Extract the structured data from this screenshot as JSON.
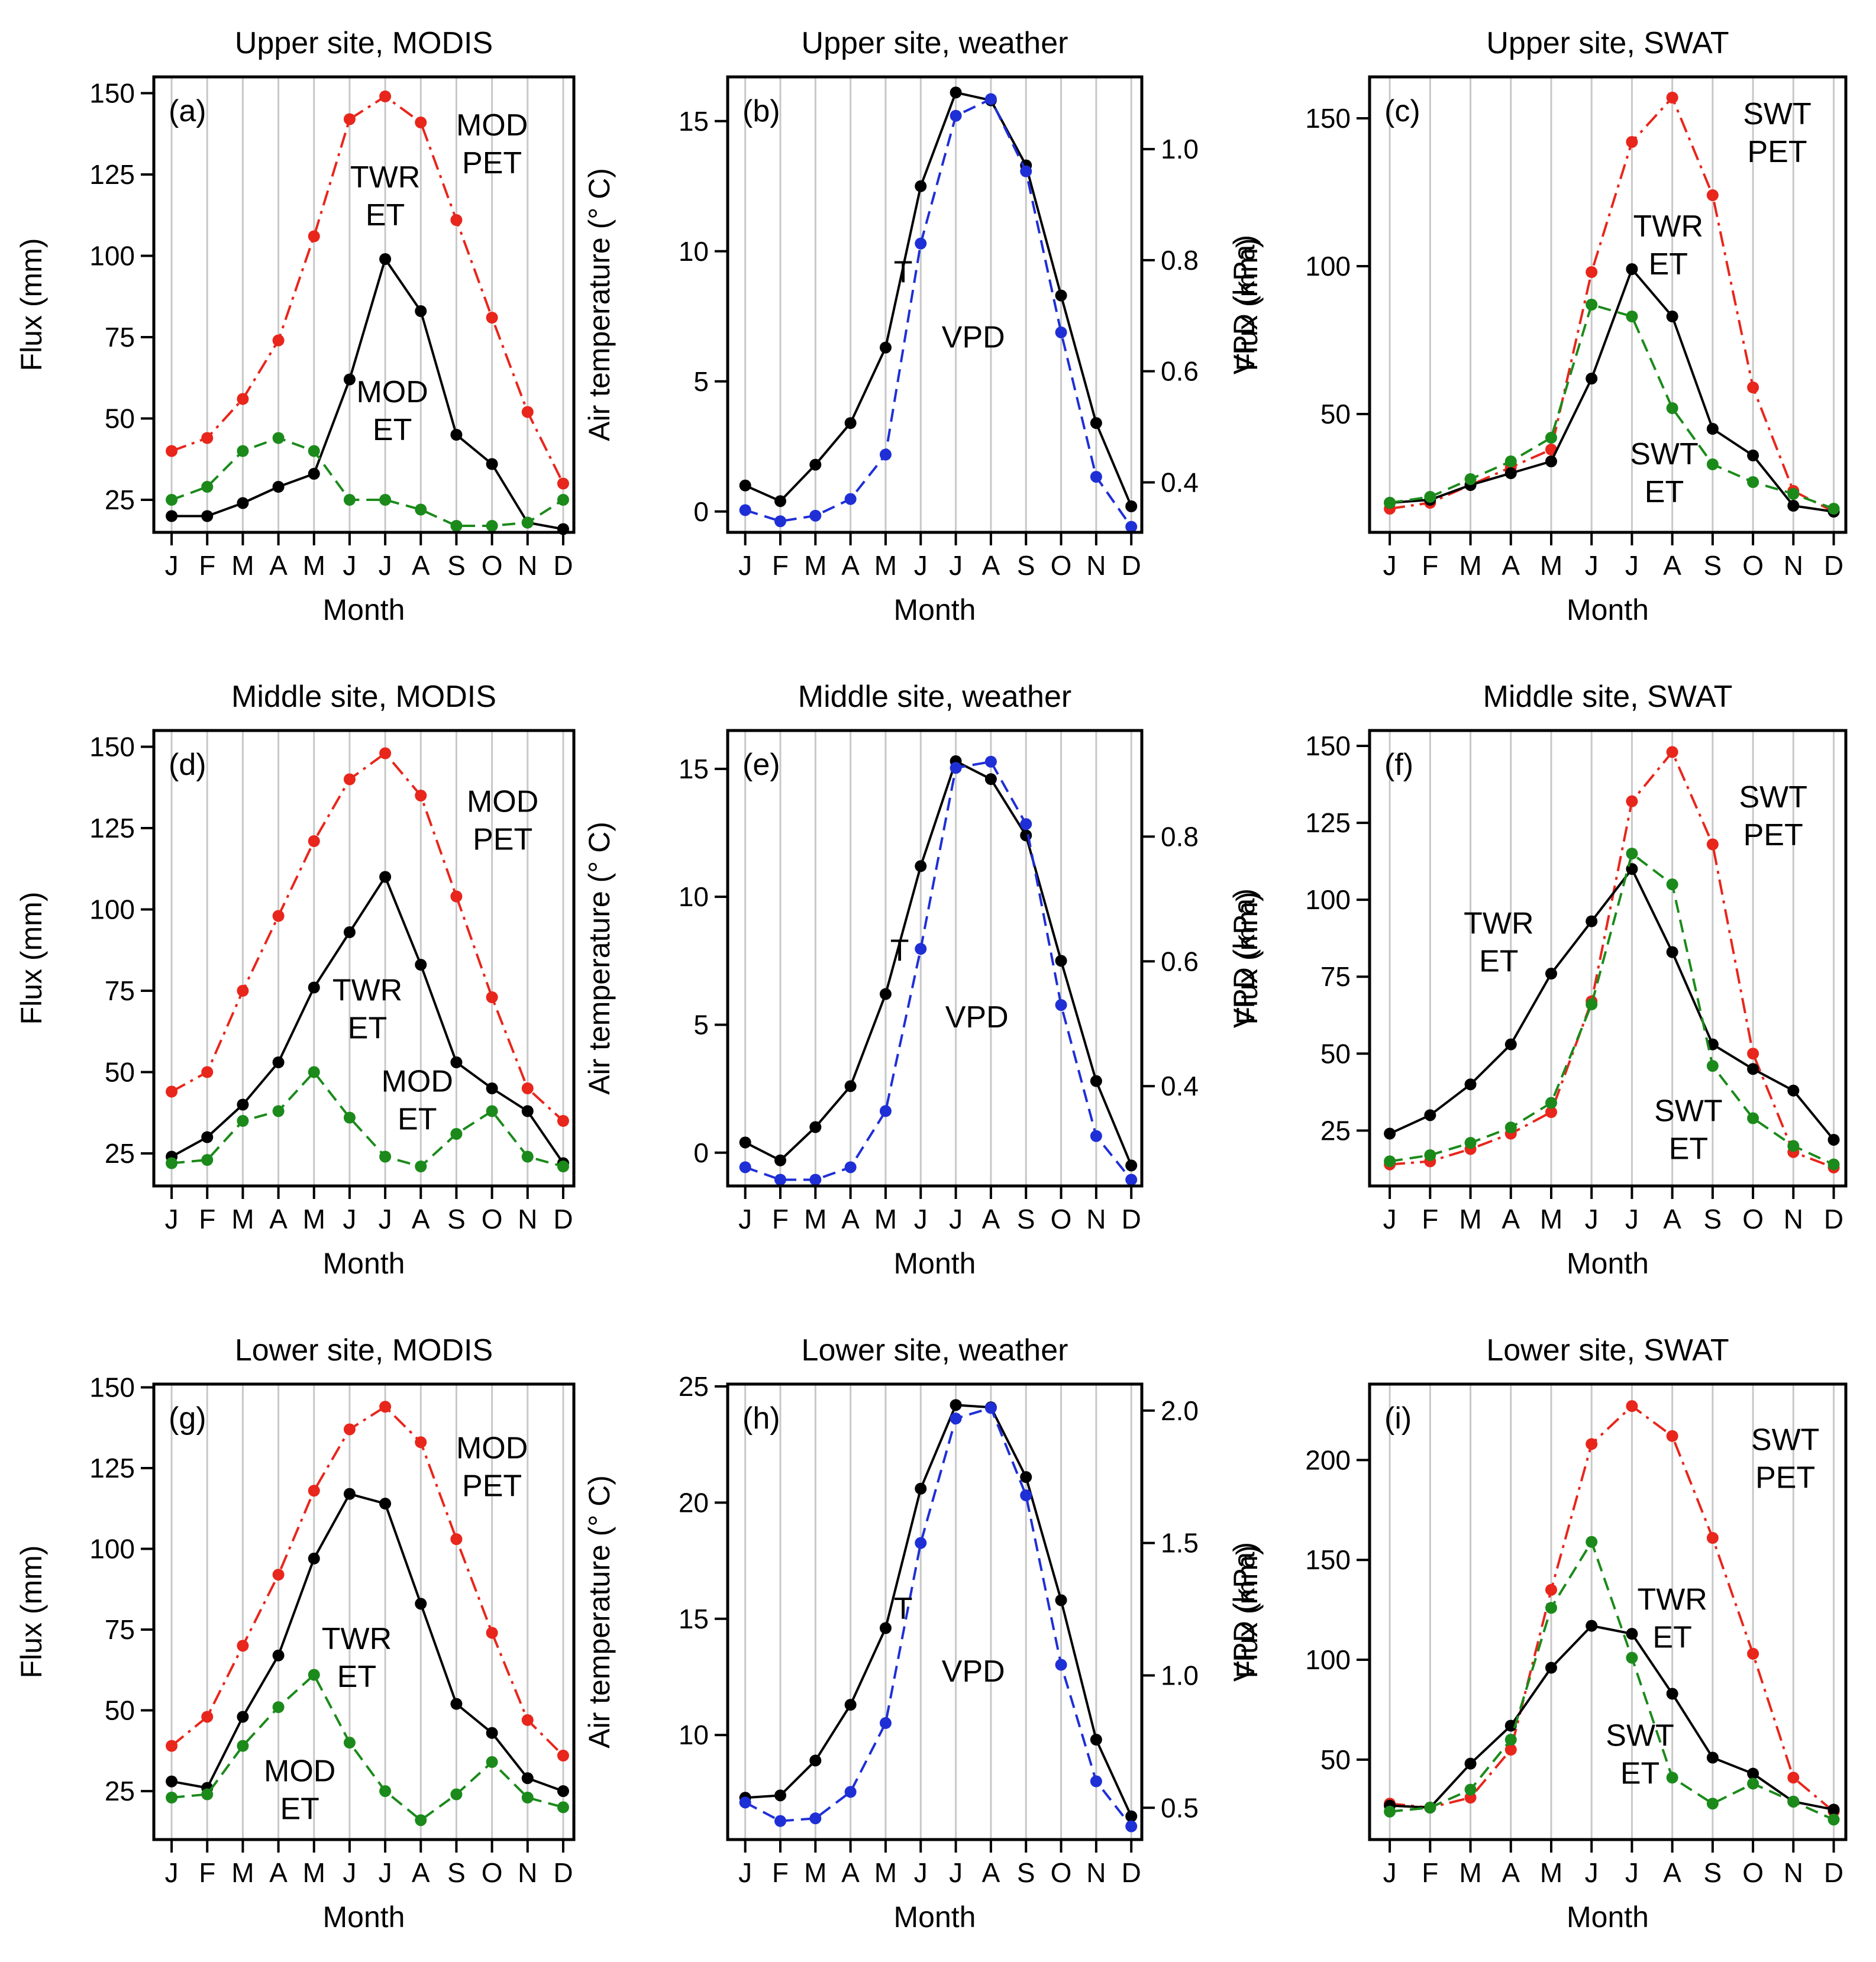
{
  "colors": {
    "black": "#000000",
    "red": "#e8261c",
    "green": "#1b8a1b",
    "blue": "#1f2fd6",
    "grid": "#c8c8c8"
  },
  "chart_data": [
    {
      "id": "a",
      "type": "line",
      "title": "Upper site, MODIS",
      "panel_label": "(a)",
      "xlabel": "Month",
      "ylabel": "Flux (mm)",
      "categories": [
        "J",
        "F",
        "M",
        "A",
        "M",
        "J",
        "J",
        "A",
        "S",
        "O",
        "N",
        "D"
      ],
      "ylim": [
        15,
        155
      ],
      "yticks": [
        25,
        50,
        75,
        100,
        125,
        150
      ],
      "series": [
        {
          "name": "MOD PET",
          "color": "red",
          "style": "dashdot",
          "values": [
            40,
            44,
            56,
            74,
            106,
            142,
            149,
            141,
            111,
            81,
            52,
            30
          ]
        },
        {
          "name": "TWR ET",
          "color": "black",
          "style": "solid",
          "values": [
            20,
            20,
            24,
            29,
            33,
            62,
            99,
            83,
            45,
            36,
            18,
            16
          ]
        },
        {
          "name": "MOD ET",
          "color": "green",
          "style": "dashed",
          "values": [
            25,
            29,
            40,
            44,
            40,
            25,
            25,
            22,
            17,
            17,
            18,
            25
          ]
        }
      ],
      "annotations": [
        {
          "lines": [
            "MOD",
            "PET"
          ],
          "x": 9.0,
          "y": 137
        },
        {
          "lines": [
            "TWR",
            "ET"
          ],
          "x": 6.0,
          "y": 121
        },
        {
          "lines": [
            "MOD",
            "ET"
          ],
          "x": 6.2,
          "y": 55
        }
      ]
    },
    {
      "id": "b",
      "type": "line",
      "title": "Upper site, weather",
      "panel_label": "(b)",
      "xlabel": "Month",
      "ylabel": "Air temperature (° C)",
      "ylabel_right": "VPD (kPa)",
      "categories": [
        "J",
        "F",
        "M",
        "A",
        "M",
        "J",
        "J",
        "A",
        "S",
        "O",
        "N",
        "D"
      ],
      "ylim": [
        -0.8,
        16.7
      ],
      "yticks": [
        0,
        5,
        10,
        15
      ],
      "ylim_right": [
        0.31,
        1.13
      ],
      "yticks_right": [
        0.4,
        0.6,
        0.8,
        1.0
      ],
      "series": [
        {
          "name": "T",
          "axis": "left",
          "color": "black",
          "style": "solid",
          "values": [
            1.0,
            0.4,
            1.8,
            3.4,
            6.3,
            12.5,
            16.1,
            15.8,
            13.3,
            8.3,
            3.4,
            0.2
          ]
        },
        {
          "name": "VPD",
          "axis": "right",
          "color": "blue",
          "style": "dashed",
          "values": [
            0.35,
            0.33,
            0.34,
            0.37,
            0.45,
            0.83,
            1.06,
            1.09,
            0.96,
            0.67,
            0.41,
            0.32
          ]
        }
      ],
      "annotations": [
        {
          "lines": [
            "T"
          ],
          "x": 4.5,
          "y": 8.8
        },
        {
          "lines": [
            "VPD"
          ],
          "x": 6.5,
          "y": 6.3
        }
      ]
    },
    {
      "id": "c",
      "type": "line",
      "title": "Upper site, SWAT",
      "panel_label": "(c)",
      "xlabel": "Month",
      "ylabel": "Flux (mm)",
      "categories": [
        "J",
        "F",
        "M",
        "A",
        "M",
        "J",
        "J",
        "A",
        "S",
        "O",
        "N",
        "D"
      ],
      "ylim": [
        10,
        164
      ],
      "yticks": [
        50,
        100,
        150
      ],
      "series": [
        {
          "name": "SWT PET",
          "color": "red",
          "style": "dashdot",
          "values": [
            18,
            20,
            26,
            32,
            38,
            98,
            142,
            157,
            124,
            59,
            24,
            17
          ]
        },
        {
          "name": "TWR ET",
          "color": "black",
          "style": "solid",
          "values": [
            20,
            21,
            26,
            30,
            34,
            62,
            99,
            83,
            45,
            36,
            19,
            17
          ]
        },
        {
          "name": "SWT ET",
          "color": "green",
          "style": "dashed",
          "values": [
            20,
            22,
            28,
            34,
            42,
            87,
            83,
            52,
            33,
            27,
            23,
            18
          ]
        }
      ],
      "annotations": [
        {
          "lines": [
            "SWT",
            "PET"
          ],
          "x": 9.6,
          "y": 148
        },
        {
          "lines": [
            "TWR",
            "ET"
          ],
          "x": 6.9,
          "y": 110
        },
        {
          "lines": [
            "SWT",
            "ET"
          ],
          "x": 6.8,
          "y": 33
        }
      ]
    },
    {
      "id": "d",
      "type": "line",
      "title": "Middle site, MODIS",
      "panel_label": "(d)",
      "xlabel": "Month",
      "ylabel": "Flux (mm)",
      "categories": [
        "J",
        "F",
        "M",
        "A",
        "M",
        "J",
        "J",
        "A",
        "S",
        "O",
        "N",
        "D"
      ],
      "ylim": [
        15,
        155
      ],
      "yticks": [
        25,
        50,
        75,
        100,
        125,
        150
      ],
      "series": [
        {
          "name": "MOD PET",
          "color": "red",
          "style": "dashdot",
          "values": [
            44,
            50,
            75,
            98,
            121,
            140,
            148,
            135,
            104,
            73,
            45,
            35
          ]
        },
        {
          "name": "TWR ET",
          "color": "black",
          "style": "solid",
          "values": [
            24,
            30,
            40,
            53,
            76,
            93,
            110,
            83,
            53,
            45,
            38,
            22
          ]
        },
        {
          "name": "MOD ET",
          "color": "green",
          "style": "dashed",
          "values": [
            22,
            23,
            35,
            38,
            50,
            36,
            24,
            21,
            31,
            38,
            24,
            21
          ]
        }
      ],
      "annotations": [
        {
          "lines": [
            "MOD",
            "PET"
          ],
          "x": 9.3,
          "y": 130
        },
        {
          "lines": [
            "TWR",
            "ET"
          ],
          "x": 5.5,
          "y": 72
        },
        {
          "lines": [
            "MOD",
            "ET"
          ],
          "x": 6.9,
          "y": 44
        }
      ]
    },
    {
      "id": "e",
      "type": "line",
      "title": "Middle site, weather",
      "panel_label": "(e)",
      "xlabel": "Month",
      "ylabel": "Air temperature (° C)",
      "ylabel_right": "VPD (kPa)",
      "categories": [
        "J",
        "F",
        "M",
        "A",
        "M",
        "J",
        "J",
        "A",
        "S",
        "O",
        "N",
        "D"
      ],
      "ylim": [
        -1.3,
        16.5
      ],
      "yticks": [
        0,
        5,
        10,
        15
      ],
      "ylim_right": [
        0.24,
        0.97
      ],
      "yticks_right": [
        0.4,
        0.6,
        0.8
      ],
      "series": [
        {
          "name": "T",
          "axis": "left",
          "color": "black",
          "style": "solid",
          "values": [
            0.4,
            -0.3,
            1.0,
            2.6,
            6.2,
            11.2,
            15.3,
            14.6,
            12.4,
            7.5,
            2.8,
            -0.5
          ]
        },
        {
          "name": "VPD",
          "axis": "right",
          "color": "blue",
          "style": "dashed",
          "values": [
            0.27,
            0.25,
            0.25,
            0.27,
            0.36,
            0.62,
            0.91,
            0.92,
            0.82,
            0.53,
            0.32,
            0.25
          ]
        }
      ],
      "annotations": [
        {
          "lines": [
            "T"
          ],
          "x": 4.4,
          "y": 7.5
        },
        {
          "lines": [
            "VPD"
          ],
          "x": 6.6,
          "y": 4.9
        }
      ]
    },
    {
      "id": "f",
      "type": "line",
      "title": "Middle site, SWAT",
      "panel_label": "(f)",
      "xlabel": "Month",
      "ylabel": "Flux (mm)",
      "categories": [
        "J",
        "F",
        "M",
        "A",
        "M",
        "J",
        "J",
        "A",
        "S",
        "O",
        "N",
        "D"
      ],
      "ylim": [
        7,
        155
      ],
      "yticks": [
        25,
        50,
        75,
        100,
        125,
        150
      ],
      "series": [
        {
          "name": "SWT PET",
          "color": "red",
          "style": "dashdot",
          "values": [
            14,
            15,
            19,
            24,
            31,
            67,
            132,
            148,
            118,
            50,
            18,
            13
          ]
        },
        {
          "name": "TWR ET",
          "color": "black",
          "style": "solid",
          "values": [
            24,
            30,
            40,
            53,
            76,
            93,
            110,
            83,
            53,
            45,
            38,
            22
          ]
        },
        {
          "name": "SWT ET",
          "color": "green",
          "style": "dashed",
          "values": [
            15,
            17,
            21,
            26,
            34,
            66,
            115,
            105,
            46,
            29,
            20,
            14
          ]
        }
      ],
      "annotations": [
        {
          "lines": [
            "SWT",
            "PET"
          ],
          "x": 9.5,
          "y": 130
        },
        {
          "lines": [
            "TWR",
            "ET"
          ],
          "x": 2.7,
          "y": 89
        },
        {
          "lines": [
            "SWT",
            "ET"
          ],
          "x": 7.4,
          "y": 28
        }
      ]
    },
    {
      "id": "g",
      "type": "line",
      "title": "Lower site, MODIS",
      "panel_label": "(g)",
      "xlabel": "Month",
      "ylabel": "Flux (mm)",
      "categories": [
        "J",
        "F",
        "M",
        "A",
        "M",
        "J",
        "J",
        "A",
        "S",
        "O",
        "N",
        "D"
      ],
      "ylim": [
        10,
        151
      ],
      "yticks": [
        25,
        50,
        75,
        100,
        125,
        150
      ],
      "series": [
        {
          "name": "MOD PET",
          "color": "red",
          "style": "dashdot",
          "values": [
            39,
            48,
            70,
            92,
            118,
            137,
            144,
            133,
            103,
            74,
            47,
            36
          ]
        },
        {
          "name": "TWR ET",
          "color": "black",
          "style": "solid",
          "values": [
            28,
            26,
            48,
            67,
            97,
            117,
            114,
            83,
            52,
            43,
            29,
            25
          ]
        },
        {
          "name": "MOD ET",
          "color": "green",
          "style": "dashed",
          "values": [
            23,
            24,
            39,
            51,
            61,
            40,
            25,
            16,
            24,
            34,
            23,
            20
          ]
        }
      ],
      "annotations": [
        {
          "lines": [
            "MOD",
            "PET"
          ],
          "x": 9.0,
          "y": 128
        },
        {
          "lines": [
            "TWR",
            "ET"
          ],
          "x": 5.2,
          "y": 69
        },
        {
          "lines": [
            "MOD",
            "ET"
          ],
          "x": 3.6,
          "y": 28
        }
      ]
    },
    {
      "id": "h",
      "type": "line",
      "title": "Lower site, weather",
      "panel_label": "(h)",
      "xlabel": "Month",
      "ylabel": "Air temperature (° C)",
      "ylabel_right": "VPD (kPa)",
      "categories": [
        "J",
        "F",
        "M",
        "A",
        "M",
        "J",
        "J",
        "A",
        "S",
        "O",
        "N",
        "D"
      ],
      "ylim": [
        5.5,
        25.1
      ],
      "yticks": [
        10,
        15,
        20,
        25
      ],
      "ylim_right": [
        0.38,
        2.1
      ],
      "yticks_right": [
        0.5,
        1.0,
        1.5,
        2.0
      ],
      "series": [
        {
          "name": "T",
          "axis": "left",
          "color": "black",
          "style": "solid",
          "values": [
            7.3,
            7.4,
            8.9,
            11.3,
            14.6,
            20.6,
            24.2,
            24.1,
            21.1,
            15.8,
            9.8,
            6.5
          ]
        },
        {
          "name": "VPD",
          "axis": "right",
          "color": "blue",
          "style": "dashed",
          "values": [
            0.52,
            0.45,
            0.46,
            0.56,
            0.82,
            1.5,
            1.97,
            2.01,
            1.68,
            1.04,
            0.6,
            0.43
          ]
        }
      ],
      "annotations": [
        {
          "lines": [
            "T"
          ],
          "x": 4.5,
          "y": 15.0
        },
        {
          "lines": [
            "VPD"
          ],
          "x": 6.5,
          "y": 12.3
        }
      ]
    },
    {
      "id": "i",
      "type": "line",
      "title": "Lower site, SWAT",
      "panel_label": "(i)",
      "xlabel": "Month",
      "ylabel": "Flux (mm)",
      "categories": [
        "J",
        "F",
        "M",
        "A",
        "M",
        "J",
        "J",
        "A",
        "S",
        "O",
        "N",
        "D"
      ],
      "ylim": [
        10,
        238
      ],
      "yticks": [
        50,
        100,
        150,
        200
      ],
      "series": [
        {
          "name": "SWT PET",
          "color": "red",
          "style": "dashdot",
          "values": [
            28,
            26,
            31,
            55,
            135,
            208,
            227,
            212,
            161,
            103,
            41,
            24
          ]
        },
        {
          "name": "TWR ET",
          "color": "black",
          "style": "solid",
          "values": [
            27,
            26,
            48,
            67,
            96,
            117,
            113,
            83,
            51,
            43,
            29,
            25
          ]
        },
        {
          "name": "SWT ET",
          "color": "green",
          "style": "dashed",
          "values": [
            24,
            26,
            35,
            60,
            126,
            159,
            101,
            41,
            28,
            38,
            29,
            20
          ]
        }
      ],
      "annotations": [
        {
          "lines": [
            "SWT",
            "PET"
          ],
          "x": 9.8,
          "y": 205
        },
        {
          "lines": [
            "TWR",
            "ET"
          ],
          "x": 7.0,
          "y": 125
        },
        {
          "lines": [
            "SWT",
            "ET"
          ],
          "x": 6.2,
          "y": 57
        }
      ]
    }
  ]
}
